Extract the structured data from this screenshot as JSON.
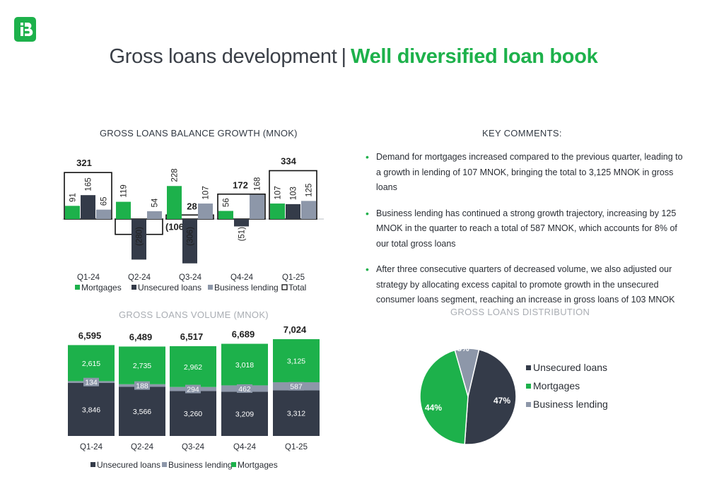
{
  "title": {
    "main": "Gross loans development",
    "separator": "|",
    "highlight": "Well diversified loan book"
  },
  "colors": {
    "mortgages": "#1db14b",
    "unsecured": "#343b49",
    "business": "#8d97a9",
    "green": "#1db14b"
  },
  "growth_chart": {
    "title": "GROSS LOANS BALANCE GROWTH  (MNOK)"
  },
  "volume_chart": {
    "title": "GROSS LOANS VOLUME (MNOK)"
  },
  "pie_chart": {
    "title": "GROSS LOANS DISTRIBUTION"
  },
  "key_comments": {
    "title": "KEY COMMENTS:",
    "bullets": [
      "Demand for mortgages increased compared to the previous quarter, leading to a growth in lending of 107 MNOK, bringing the total to 3,125 MNOK in gross loans",
      "Business lending has continued a strong growth trajectory, increasing by 125 MNOK in the quarter to reach a total of 587 MNOK, which accounts for 8% of our total gross loans",
      "After three consecutive quarters of decreased volume, we also adjusted our strategy by allocating excess capital to promote growth in the unsecured consumer loans segment, reaching an increase in gross loans of 103 MNOK"
    ]
  },
  "chart_data": [
    {
      "type": "bar",
      "title": "GROSS LOANS BALANCE GROWTH  (MNOK)",
      "categories": [
        "Q1-24",
        "Q2-24",
        "Q3-24",
        "Q4-24",
        "Q1-25"
      ],
      "series": [
        {
          "name": "Mortgages",
          "values": [
            91,
            119,
            228,
            56,
            107
          ],
          "labels": [
            "91",
            "119",
            "228",
            "56",
            "107"
          ]
        },
        {
          "name": "Unsecured loans",
          "values": [
            165,
            -280,
            -306,
            -51,
            103
          ],
          "labels": [
            "165",
            "(280)",
            "(306)",
            "(51)",
            "103"
          ]
        },
        {
          "name": "Business lending",
          "values": [
            65,
            54,
            107,
            168,
            125
          ],
          "labels": [
            "65",
            "54",
            "107",
            "168",
            "125"
          ]
        },
        {
          "name": "Total",
          "values": [
            321,
            -106,
            28,
            172,
            334
          ],
          "labels": [
            "321",
            "(106)",
            "28",
            "172",
            "334"
          ]
        }
      ],
      "legend_position": "bottom",
      "grid": false
    },
    {
      "type": "bar",
      "stacked": true,
      "title": "GROSS LOANS VOLUME (MNOK)",
      "categories": [
        "Q1-24",
        "Q2-24",
        "Q3-24",
        "Q4-24",
        "Q1-25"
      ],
      "series": [
        {
          "name": "Unsecured loans",
          "values": [
            3846,
            3566,
            3260,
            3209,
            3312
          ],
          "labels": [
            "3,846",
            "3,566",
            "3,260",
            "3,209",
            "3,312"
          ]
        },
        {
          "name": "Business lending",
          "values": [
            134,
            188,
            294,
            462,
            587
          ],
          "labels": [
            "134",
            "188",
            "294",
            "462",
            "587"
          ]
        },
        {
          "name": "Mortgages",
          "values": [
            2615,
            2735,
            2962,
            3018,
            3125
          ],
          "labels": [
            "2,615",
            "2,735",
            "2,962",
            "3,018",
            "3,125"
          ]
        }
      ],
      "totals": [
        "6,595",
        "6,489",
        "6,517",
        "6,689",
        "7,024"
      ],
      "legend_position": "bottom",
      "grid": false
    },
    {
      "type": "pie",
      "title": "GROSS LOANS DISTRIBUTION",
      "slices": [
        {
          "name": "Unsecured loans",
          "value": 47,
          "label": "47%"
        },
        {
          "name": "Mortgages",
          "value": 44,
          "label": "44%"
        },
        {
          "name": "Business lending",
          "value": 8,
          "label": "8%"
        }
      ],
      "legend_position": "right"
    }
  ]
}
